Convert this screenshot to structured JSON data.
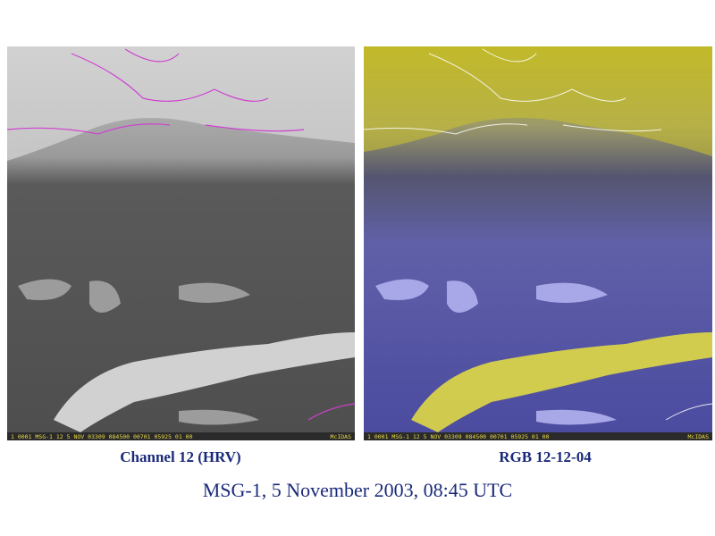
{
  "title": "MSG-1, 5 November 2003, 08:45 UTC",
  "panels": [
    {
      "caption": "Channel 12 (HRV)",
      "status": "1 0001 MSG-1    12   5 NOV 03309 084500 00701 05925 01 00",
      "logo": "McIDAS"
    },
    {
      "caption": "RGB 12-12-04",
      "status": "1 0001 MSG-1    12   5 NOV 03309 084500 00701 05925 01 00",
      "logo": "McIDAS"
    }
  ]
}
